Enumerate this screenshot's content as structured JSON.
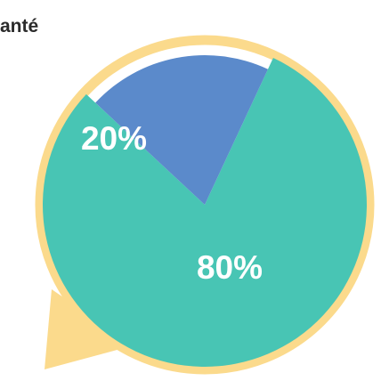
{
  "chart_data": {
    "type": "pie",
    "title": "anté",
    "categories": [
      "",
      ""
    ],
    "values": [
      80,
      20
    ],
    "labels": [
      "80%",
      "20%"
    ],
    "colors": [
      "#48C5B4",
      "#5B8ACB"
    ]
  },
  "ring_color": "#FBDA8C"
}
